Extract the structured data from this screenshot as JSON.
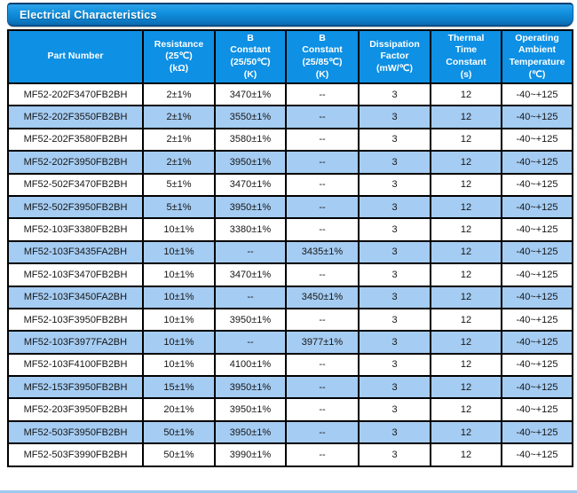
{
  "banner": {
    "title": "Electrical Characteristics"
  },
  "table": {
    "columns": [
      {
        "label": "Part Number"
      },
      {
        "label": "Resistance\n(25℃)\n(kΩ)"
      },
      {
        "label": "B\nConstant\n(25/50℃)\n(K)"
      },
      {
        "label": "B\nConstant\n(25/85℃)\n(K)"
      },
      {
        "label": "Dissipation\nFactor\n(mW/℃)"
      },
      {
        "label": "Thermal\nTime\nConstant\n(s)"
      },
      {
        "label": "Operating\nAmbient\nTemperature\n(℃)"
      }
    ],
    "rows": [
      [
        "MF52-202F3470FB2BH",
        "2±1%",
        "3470±1%",
        "--",
        "3",
        "12",
        "-40~+125"
      ],
      [
        "MF52-202F3550FB2BH",
        "2±1%",
        "3550±1%",
        "--",
        "3",
        "12",
        "-40~+125"
      ],
      [
        "MF52-202F3580FB2BH",
        "2±1%",
        "3580±1%",
        "--",
        "3",
        "12",
        "-40~+125"
      ],
      [
        "MF52-202F3950FB2BH",
        "2±1%",
        "3950±1%",
        "--",
        "3",
        "12",
        "-40~+125"
      ],
      [
        "MF52-502F3470FB2BH",
        "5±1%",
        "3470±1%",
        "--",
        "3",
        "12",
        "-40~+125"
      ],
      [
        "MF52-502F3950FB2BH",
        "5±1%",
        "3950±1%",
        "--",
        "3",
        "12",
        "-40~+125"
      ],
      [
        "MF52-103F3380FB2BH",
        "10±1%",
        "3380±1%",
        "--",
        "3",
        "12",
        "-40~+125"
      ],
      [
        "MF52-103F3435FA2BH",
        "10±1%",
        "--",
        "3435±1%",
        "3",
        "12",
        "-40~+125"
      ],
      [
        "MF52-103F3470FB2BH",
        "10±1%",
        "3470±1%",
        "--",
        "3",
        "12",
        "-40~+125"
      ],
      [
        "MF52-103F3450FA2BH",
        "10±1%",
        "--",
        "3450±1%",
        "3",
        "12",
        "-40~+125"
      ],
      [
        "MF52-103F3950FB2BH",
        "10±1%",
        "3950±1%",
        "--",
        "3",
        "12",
        "-40~+125"
      ],
      [
        "MF52-103F3977FA2BH",
        "10±1%",
        "--",
        "3977±1%",
        "3",
        "12",
        "-40~+125"
      ],
      [
        "MF52-103F4100FB2BH",
        "10±1%",
        "4100±1%",
        "--",
        "3",
        "12",
        "-40~+125"
      ],
      [
        "MF52-153F3950FB2BH",
        "15±1%",
        "3950±1%",
        "--",
        "3",
        "12",
        "-40~+125"
      ],
      [
        "MF52-203F3950FB2BH",
        "20±1%",
        "3950±1%",
        "--",
        "3",
        "12",
        "-40~+125"
      ],
      [
        "MF52-503F3950FB2BH",
        "50±1%",
        "3950±1%",
        "--",
        "3",
        "12",
        "-40~+125"
      ],
      [
        "MF52-503F3990FB2BH",
        "50±1%",
        "3990±1%",
        "--",
        "3",
        "12",
        "-40~+125"
      ]
    ]
  },
  "colors": {
    "banner_blue_top": "#2ea3ea",
    "banner_blue_bottom": "#0a6bb1",
    "banner_border": "#084f88",
    "header_blue": "#0e90e4",
    "row_alt_blue": "#a5ccf2",
    "grid_line": "#000000",
    "body_text": "#161616",
    "header_text": "#ffffff"
  }
}
